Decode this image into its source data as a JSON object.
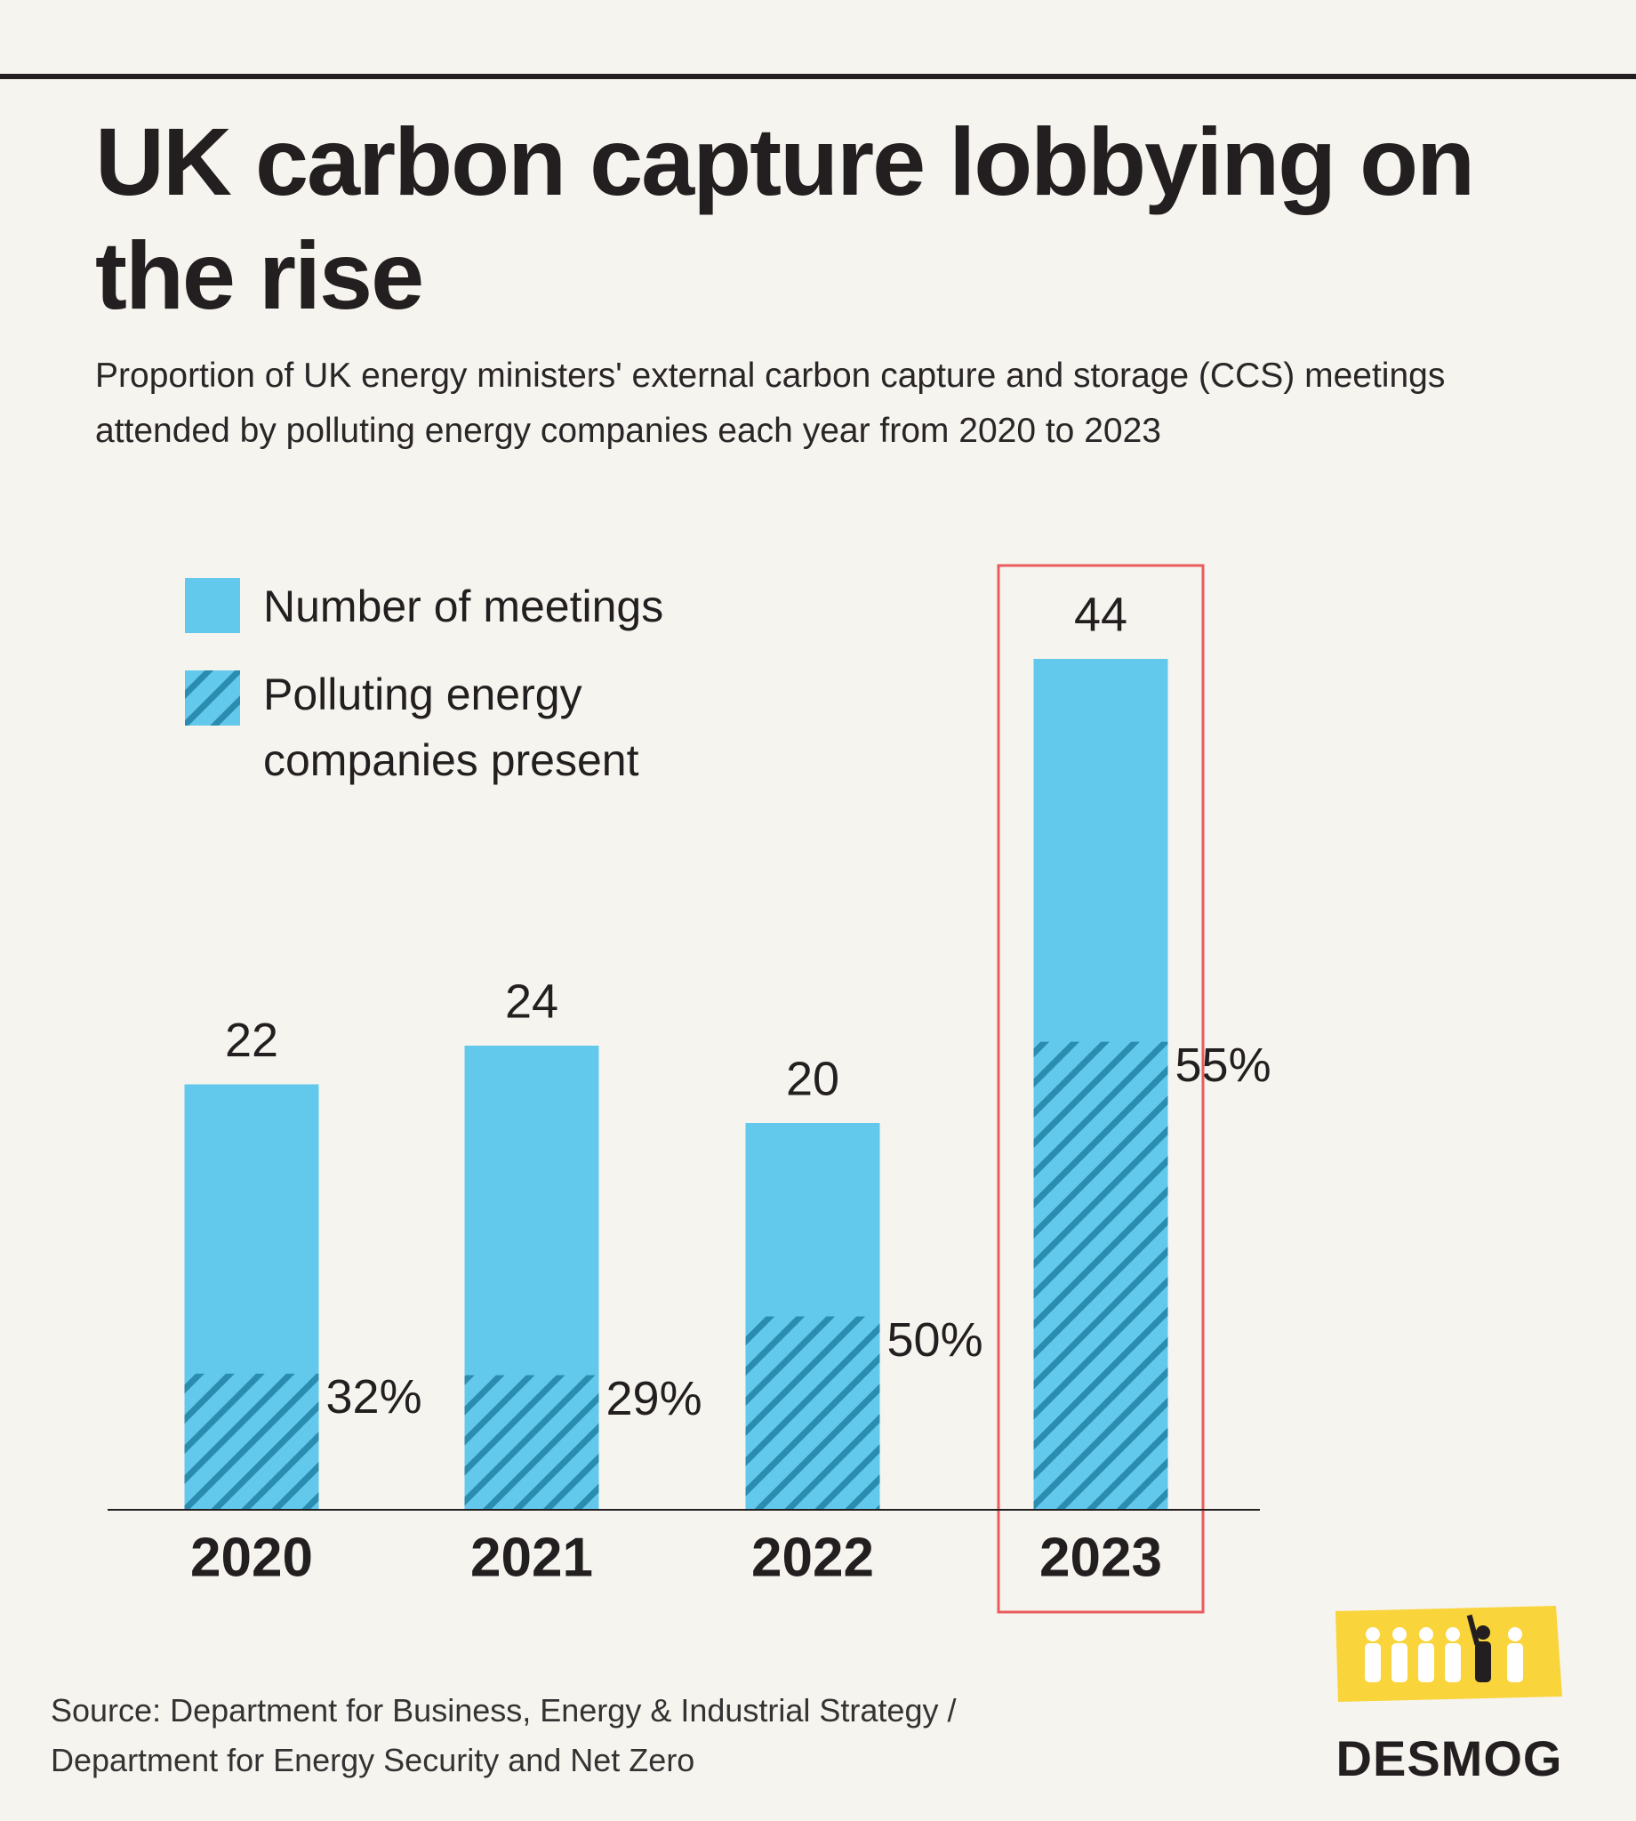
{
  "chart_data": {
    "type": "bar",
    "title": "UK carbon capture lobbying on the rise",
    "subtitle": "Proportion of UK energy ministers' external carbon capture and storage (CCS) meetings attended by polluting energy companies each year from 2020 to 2023",
    "categories": [
      "2020",
      "2021",
      "2022",
      "2023"
    ],
    "series": [
      {
        "name": "Number of meetings",
        "color": "#62c8ec",
        "values": [
          22,
          24,
          20,
          44
        ]
      },
      {
        "name": "Polluting energy companies present",
        "color": "#2a8cae",
        "values": [
          32,
          29,
          50,
          55
        ],
        "value_labels": [
          "32%",
          "29%",
          "50%",
          "55%"
        ]
      }
    ],
    "highlight": "2023",
    "highlight_color": "#ea5b5e",
    "source": "Source: Department for Business, Energy & Industrial Strategy / Department for Energy Security and Net Zero",
    "brand": "DESMOG"
  }
}
